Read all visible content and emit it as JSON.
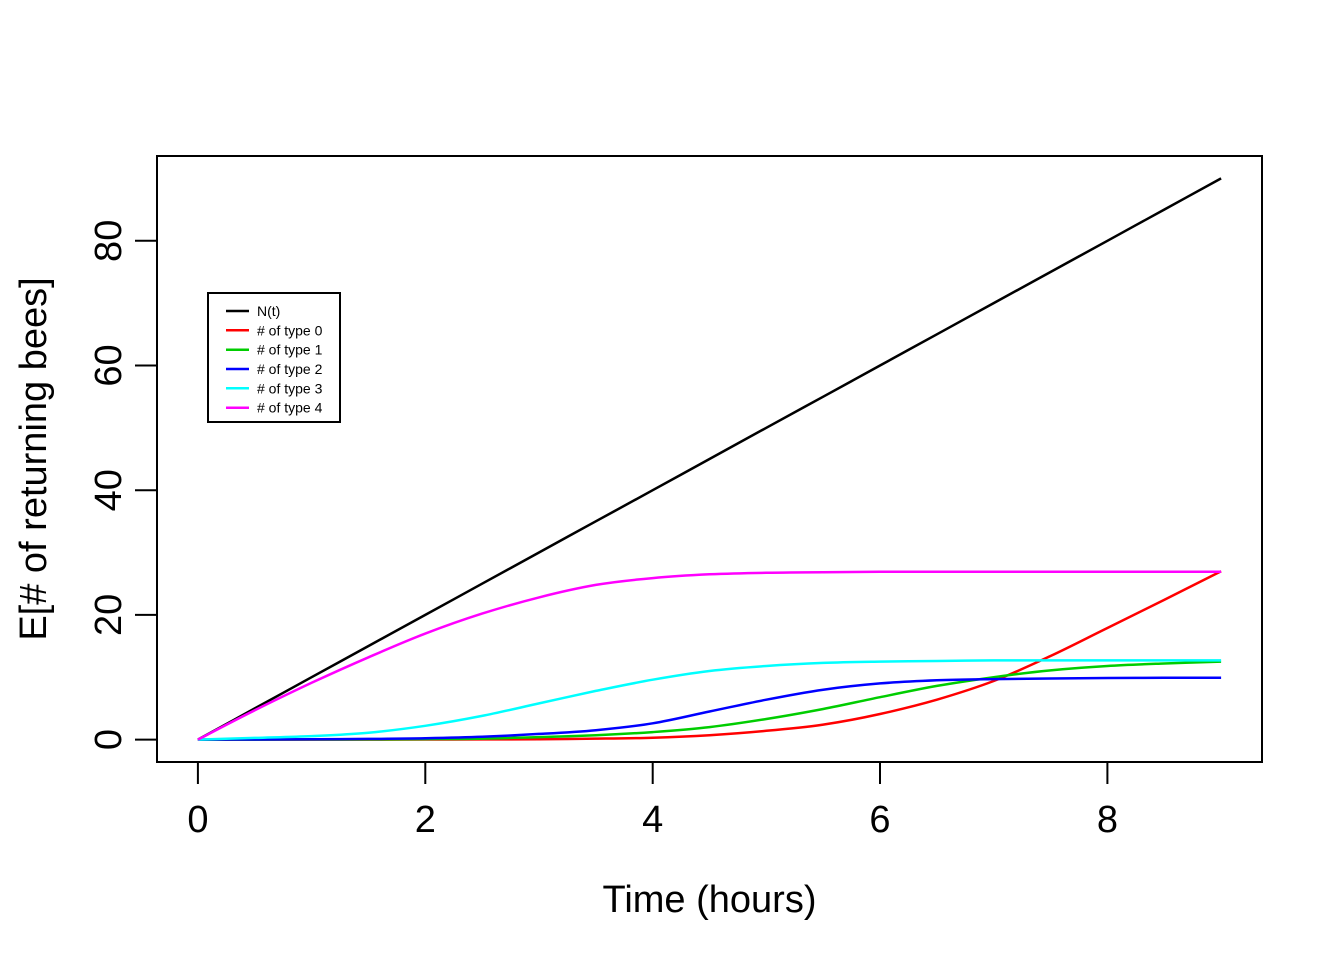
{
  "chart_data": {
    "type": "line",
    "title": "",
    "xlabel": "Time (hours)",
    "ylabel": "E[# of returning bees]",
    "xlim": [
      0,
      9
    ],
    "ylim": [
      0,
      90
    ],
    "xticks": [
      0,
      2,
      4,
      6,
      8
    ],
    "yticks": [
      0,
      20,
      40,
      60,
      80
    ],
    "grid": false,
    "background": "#FFFFFF",
    "axis_color": "#000000",
    "legend": {
      "position": "inside-top-left",
      "border": true,
      "entries": [
        "N(t)",
        "# of type 0",
        "# of type 1",
        "# of type 2",
        "# of type 3",
        "# of type 4"
      ]
    },
    "x": [
      0,
      0.5,
      1,
      1.5,
      2,
      2.5,
      3,
      3.5,
      4,
      4.5,
      5,
      5.5,
      6,
      6.5,
      7,
      7.5,
      8,
      8.5,
      9
    ],
    "series": [
      {
        "name": "N(t)",
        "color": "#000000",
        "values": [
          0,
          5,
          10,
          15,
          20,
          25,
          30,
          35,
          40,
          45,
          50,
          55,
          60,
          65,
          70,
          75,
          80,
          85,
          90
        ]
      },
      {
        "name": "# of type 0",
        "color": "#FF0000",
        "values": [
          0,
          0,
          0,
          0,
          0.01,
          0.03,
          0.05,
          0.15,
          0.3,
          0.7,
          1.4,
          2.4,
          4.1,
          6.4,
          9.4,
          13.4,
          17.9,
          22.4,
          27.0
        ]
      },
      {
        "name": "# of type 1",
        "color": "#00CD00",
        "values": [
          0,
          0,
          0.01,
          0.03,
          0.07,
          0.15,
          0.4,
          0.7,
          1.2,
          2.0,
          3.3,
          4.9,
          6.8,
          8.6,
          10.0,
          11.1,
          11.8,
          12.2,
          12.5
        ]
      },
      {
        "name": "# of type 2",
        "color": "#0000FF",
        "values": [
          0,
          0.01,
          0.05,
          0.1,
          0.2,
          0.45,
          0.9,
          1.5,
          2.6,
          4.5,
          6.4,
          8.0,
          9.0,
          9.5,
          9.7,
          9.8,
          9.87,
          9.9,
          9.9
        ]
      },
      {
        "name": "# of type 3",
        "color": "#00FFFF",
        "values": [
          0,
          0.27,
          0.56,
          1.1,
          2.2,
          3.8,
          5.8,
          7.8,
          9.6,
          11.0,
          11.8,
          12.3,
          12.5,
          12.6,
          12.7,
          12.7,
          12.7,
          12.7,
          12.7
        ]
      },
      {
        "name": "# of type 4",
        "color": "#FF00FF",
        "values": [
          0,
          4.7,
          9.1,
          13.2,
          17.0,
          20.2,
          22.8,
          24.8,
          25.9,
          26.5,
          26.75,
          26.85,
          26.9,
          26.9,
          26.9,
          26.9,
          26.9,
          26.9,
          26.9
        ]
      }
    ]
  }
}
